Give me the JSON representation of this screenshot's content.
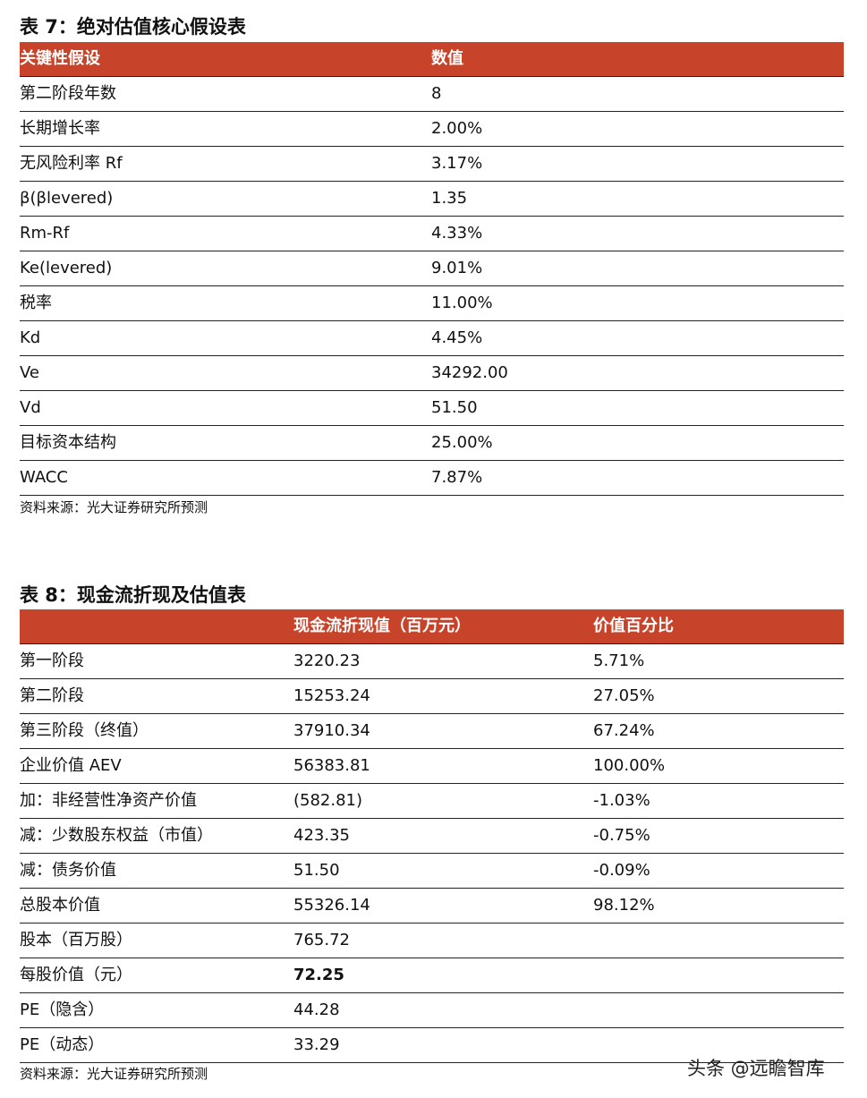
{
  "table7": {
    "title": "表 7：绝对估值核心假设表",
    "header": [
      "关键性假设",
      "数值"
    ],
    "rows": [
      [
        "第二阶段年数",
        "8"
      ],
      [
        "长期增长率",
        "2.00%"
      ],
      [
        "无风险利率 Rf",
        "3.17%"
      ],
      [
        "β(βlevered)",
        "1.35"
      ],
      [
        "Rm-Rf",
        "4.33%"
      ],
      [
        "Ke(levered)",
        "9.01%"
      ],
      [
        "税率",
        "11.00%"
      ],
      [
        "Kd",
        "4.45%"
      ],
      [
        "Ve",
        "34292.00"
      ],
      [
        "Vd",
        "51.50"
      ],
      [
        "目标资本结构",
        "25.00%"
      ],
      [
        "WACC",
        "7.87%"
      ]
    ],
    "source": "资料来源：光大证券研究所预测"
  },
  "table8": {
    "title": "表 8：现金流折现及估值表",
    "header": [
      "",
      "现金流折现值（百万元）",
      "价值百分比"
    ],
    "rows": [
      [
        "第一阶段",
        "3220.23",
        "5.71%"
      ],
      [
        "第二阶段",
        "15253.24",
        "27.05%"
      ],
      [
        "第三阶段（终值）",
        "37910.34",
        "67.24%"
      ],
      [
        "企业价值 AEV",
        "56383.81",
        "100.00%"
      ],
      [
        "加：非经营性净资产价值",
        "(582.81)",
        "-1.03%"
      ],
      [
        "减：少数股东权益（市值）",
        "423.35",
        "-0.75%"
      ],
      [
        "减：债务价值",
        "51.50",
        "-0.09%"
      ],
      [
        "总股本价值",
        "55326.14",
        "98.12%"
      ],
      [
        "股本（百万股）",
        "765.72"
      ],
      [
        "每股价值（元）",
        "72.25"
      ],
      [
        "PE（隐含）",
        "44.28"
      ],
      [
        "PE（动态）",
        "33.29"
      ]
    ],
    "source": "资料来源：光大证券研究所预测"
  },
  "watermark": "头条 @远瞻智库"
}
